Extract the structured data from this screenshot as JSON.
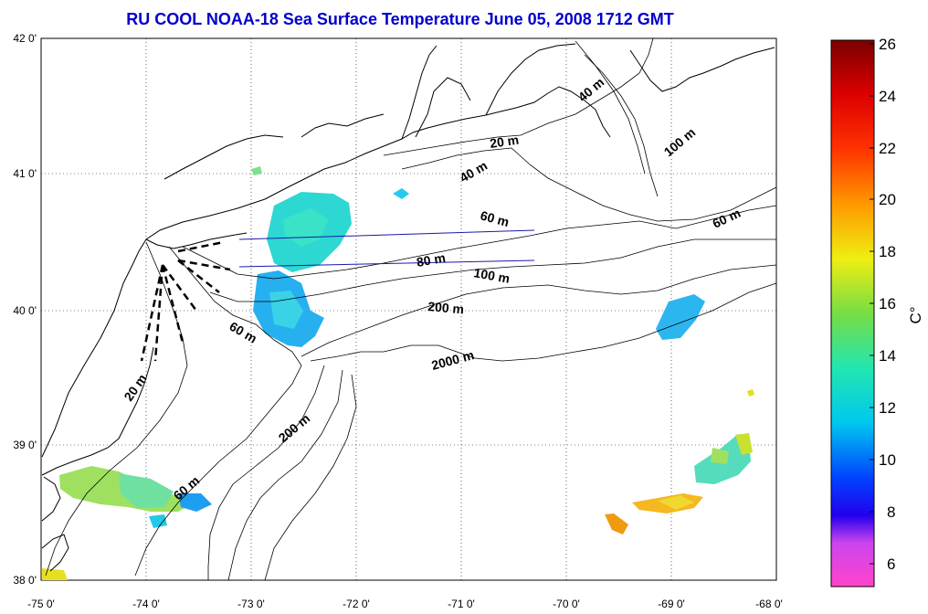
{
  "title": "RU COOL  NOAA-18 Sea Surface Temperature June 05, 2008 1712 GMT",
  "axes": {
    "lon_ticks": [
      "-75 0'",
      "-74 0'",
      "-73 0'",
      "-72 0'",
      "-71 0'",
      "-70 0'",
      "-69 0'",
      "-68 0'"
    ],
    "lat_ticks": [
      "42 0'",
      "41 0'",
      "40 0'",
      "39 0'",
      "38 0'"
    ]
  },
  "contour_labels": [
    "20 m",
    "40 m",
    "40 m",
    "100 m",
    "20 m",
    "60 m",
    "60 m",
    "80 m",
    "100 m",
    "200 m",
    "60 m",
    "2000 m",
    "20 m",
    "200 m",
    "60 m"
  ],
  "colorbar": {
    "unit": "C°",
    "ticks": [
      "26",
      "24",
      "22",
      "20",
      "18",
      "16",
      "14",
      "12",
      "10",
      "8",
      "6"
    ],
    "min": 5,
    "max": 26
  },
  "colors": {
    "title": "#0000cc",
    "track_line": "#1a1aaa"
  }
}
